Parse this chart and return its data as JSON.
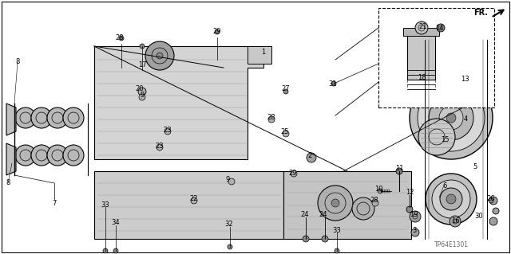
{
  "background_color": "#ffffff",
  "border_color": "#000000",
  "figsize": [
    6.4,
    3.19
  ],
  "dpi": 100,
  "line_color": "#000000",
  "label_fontsize": 6.0,
  "subtitle": "TP64E1301",
  "labels": [
    [
      "1",
      330,
      65
    ],
    [
      "2",
      388,
      195
    ],
    [
      "3",
      519,
      290
    ],
    [
      "4",
      583,
      150
    ],
    [
      "5",
      595,
      210
    ],
    [
      "6",
      557,
      233
    ],
    [
      "7",
      68,
      255
    ],
    [
      "8",
      22,
      78
    ],
    [
      "8",
      10,
      230
    ],
    [
      "9",
      285,
      225
    ],
    [
      "9",
      178,
      120
    ],
    [
      "10",
      474,
      237
    ],
    [
      "11",
      500,
      212
    ],
    [
      "12",
      513,
      242
    ],
    [
      "13",
      582,
      100
    ],
    [
      "14",
      550,
      35
    ],
    [
      "15",
      557,
      175
    ],
    [
      "16",
      570,
      277
    ],
    [
      "17",
      178,
      82
    ],
    [
      "18",
      528,
      97
    ],
    [
      "19",
      518,
      270
    ],
    [
      "20",
      175,
      112
    ],
    [
      "21",
      530,
      33
    ],
    [
      "22",
      243,
      250
    ],
    [
      "23",
      210,
      163
    ],
    [
      "23",
      200,
      183
    ],
    [
      "24",
      382,
      270
    ],
    [
      "24",
      405,
      270
    ],
    [
      "25",
      357,
      165
    ],
    [
      "26",
      615,
      250
    ],
    [
      "27",
      358,
      112
    ],
    [
      "28",
      150,
      47
    ],
    [
      "28",
      340,
      148
    ],
    [
      "28",
      469,
      252
    ],
    [
      "29",
      272,
      40
    ],
    [
      "29",
      367,
      217
    ],
    [
      "30",
      600,
      272
    ],
    [
      "31",
      417,
      105
    ],
    [
      "32",
      287,
      282
    ],
    [
      "33",
      132,
      257
    ],
    [
      "33",
      422,
      290
    ],
    [
      "34",
      145,
      280
    ]
  ]
}
